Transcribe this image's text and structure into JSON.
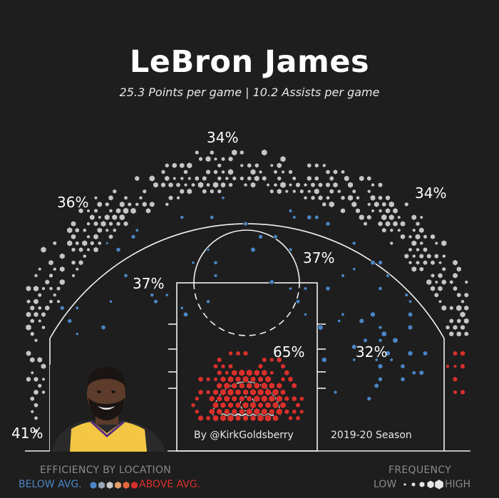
{
  "header": {
    "title": "LeBron James",
    "subtitle": "25.3 Points per game | 10.2 Assists per game"
  },
  "footer": {
    "credit": "By @KirkGoldsberry",
    "season": "2019-20 Season"
  },
  "legend": {
    "efficiency_title": "EFFICIENCY BY LOCATION",
    "below_label": "BELOW AVG.",
    "above_label": "ABOVE AVG.",
    "efficiency_colors": [
      "#4a86c5",
      "#9aa7b6",
      "#c9c9c9",
      "#e6a06a",
      "#e5673a",
      "#d9302c"
    ],
    "frequency_title": "FREQUENCY",
    "low_label": "LOW",
    "high_label": "HIGH"
  },
  "colors": {
    "background": "#1f1e1e",
    "court_lines": "#f2f2f2",
    "average": "#c6c6c6",
    "below_avg": "#4a86c5",
    "above_avg": "#d9302c"
  },
  "chart_data": {
    "type": "hexbin",
    "title": "LeBron James",
    "subtitle": "25.3 Points per game | 10.2 Assists per game",
    "zones": [
      {
        "zone": "top of the key three",
        "fg_pct": "34%",
        "efficiency": "average"
      },
      {
        "zone": "left wing three",
        "fg_pct": "36%",
        "efficiency": "average"
      },
      {
        "zone": "right wing three",
        "fg_pct": "34%",
        "efficiency": "average"
      },
      {
        "zone": "left elbow mid-range",
        "fg_pct": "37%",
        "efficiency": "below"
      },
      {
        "zone": "right elbow mid-range",
        "fg_pct": "37%",
        "efficiency": "below"
      },
      {
        "zone": "restricted area",
        "fg_pct": "65%",
        "efficiency": "above"
      },
      {
        "zone": "right baseline mid-range",
        "fg_pct": "32%",
        "efficiency": "below"
      },
      {
        "zone": "left corner three",
        "fg_pct": "41%",
        "efficiency": "average"
      }
    ]
  }
}
